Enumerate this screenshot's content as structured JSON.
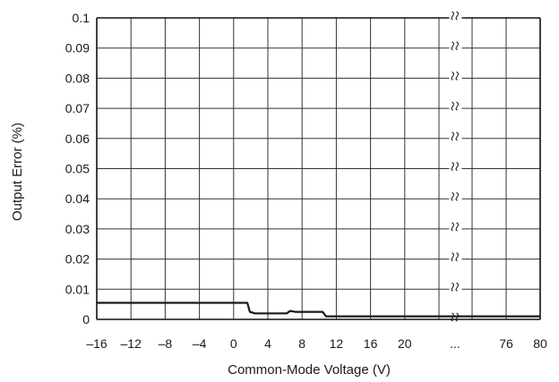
{
  "chart_data": {
    "type": "line",
    "title": "",
    "xlabel": "Common-Mode Voltage (V)",
    "ylabel": "Output Error (%)",
    "ylim": [
      0,
      0.1
    ],
    "y_ticks": [
      0,
      0.01,
      0.02,
      0.03,
      0.04,
      0.05,
      0.06,
      0.07,
      0.08,
      0.09,
      0.1
    ],
    "y_tick_labels": [
      "0",
      "0.01",
      "0.02",
      "0.03",
      "0.04",
      "0.05",
      "0.06",
      "0.07",
      "0.08",
      "0.09",
      "0.1"
    ],
    "x_segments": [
      {
        "xlim": [
          -16,
          24
        ],
        "ticks": [
          -16,
          -12,
          -8,
          -4,
          0,
          4,
          8,
          12,
          16,
          20,
          24
        ]
      },
      {
        "xlim": [
          72,
          80
        ],
        "ticks": [
          72,
          76,
          80
        ]
      }
    ],
    "x_tick_labels": [
      {
        "value": -16,
        "text": "–16"
      },
      {
        "value": -12,
        "text": "–12"
      },
      {
        "value": -8,
        "text": "–8"
      },
      {
        "value": -4,
        "text": "–4"
      },
      {
        "value": 0,
        "text": "0"
      },
      {
        "value": 4,
        "text": "4"
      },
      {
        "value": 8,
        "text": "8"
      },
      {
        "value": 12,
        "text": "12"
      },
      {
        "value": 16,
        "text": "16"
      },
      {
        "value": 20,
        "text": "20"
      },
      {
        "value": 76,
        "text": "76"
      },
      {
        "value": 80,
        "text": "80"
      }
    ],
    "axis_break_label": "...",
    "grid": true,
    "line_color": "#1a1a1a",
    "series": [
      {
        "points": [
          [
            -16,
            0.0055
          ],
          [
            1.6,
            0.0055
          ],
          [
            1.9,
            0.0025
          ],
          [
            2.5,
            0.002
          ],
          [
            6.2,
            0.002
          ],
          [
            6.6,
            0.0028
          ],
          [
            7.2,
            0.0025
          ],
          [
            10.4,
            0.0025
          ],
          [
            10.8,
            0.001
          ],
          [
            72,
            0.001
          ],
          [
            80,
            0.001
          ]
        ]
      }
    ]
  }
}
